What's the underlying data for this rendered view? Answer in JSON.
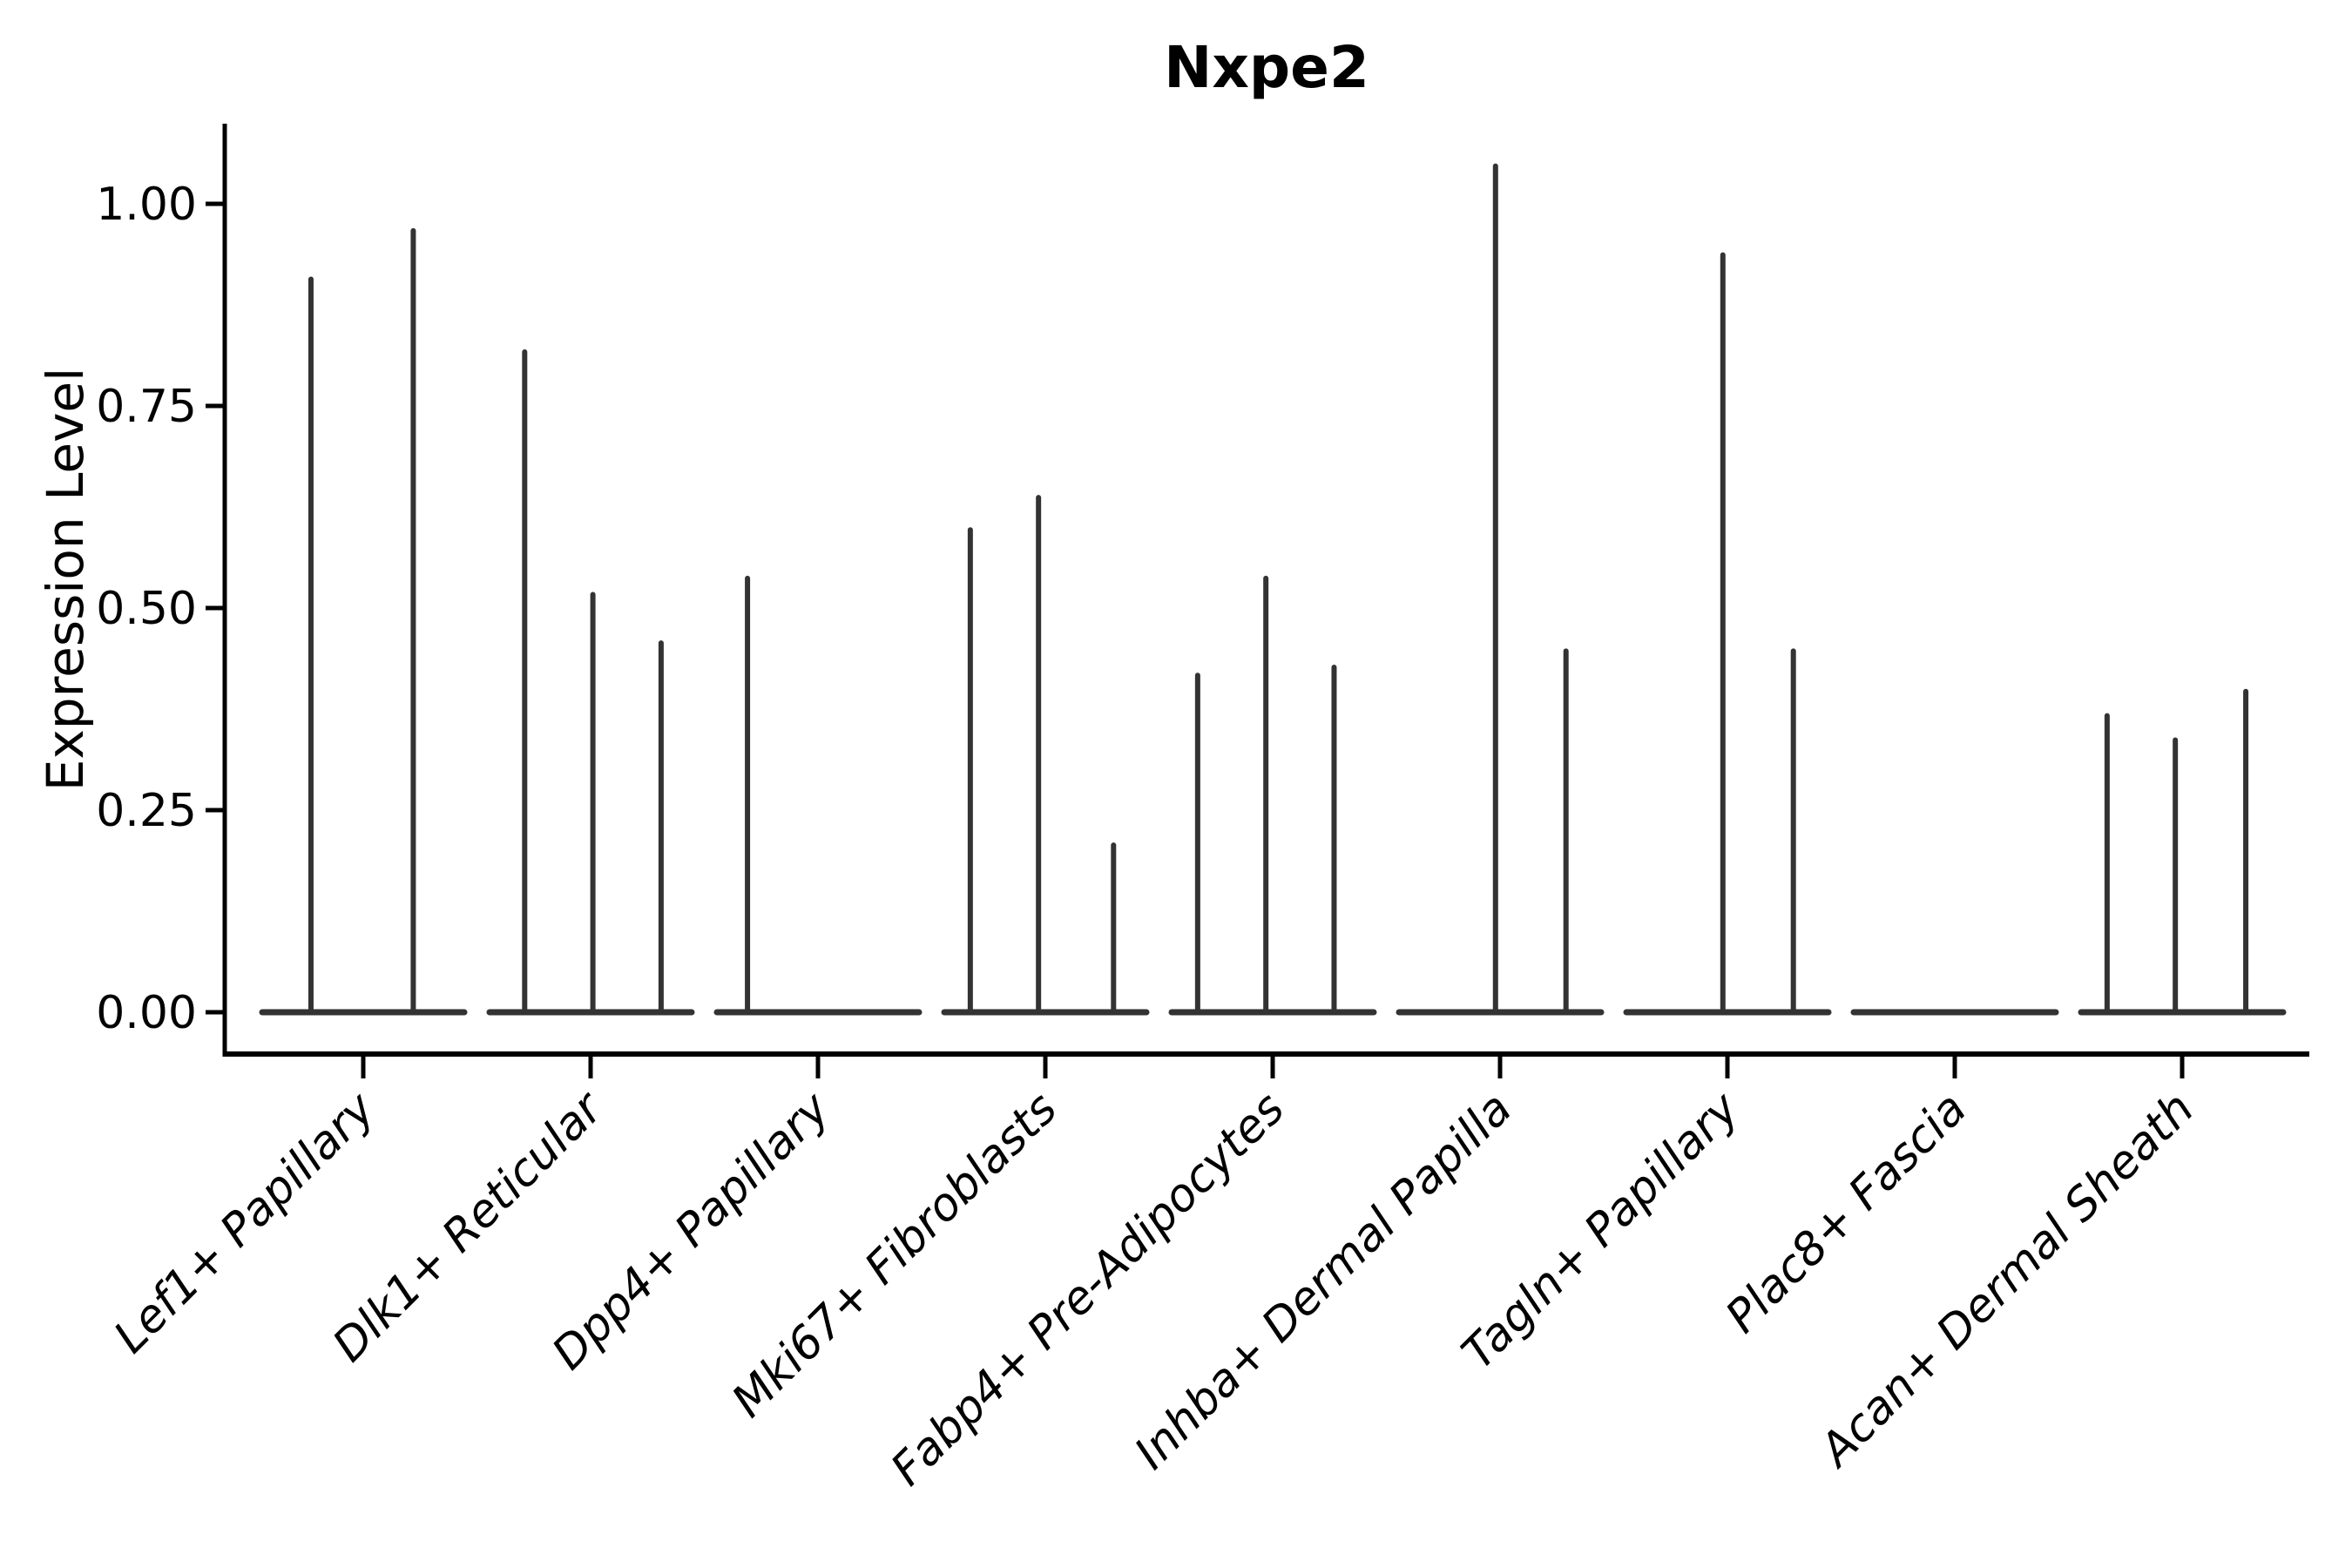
{
  "chart_data": {
    "type": "violin",
    "title": "Nxpe2",
    "xlabel": "",
    "ylabel": "Expression Level",
    "ylim": [
      -0.05,
      1.1
    ],
    "grid": false,
    "legend": null,
    "yticks": [
      {
        "value": 0.0,
        "label": "0.00"
      },
      {
        "value": 0.25,
        "label": "0.25"
      },
      {
        "value": 0.5,
        "label": "0.50"
      },
      {
        "value": 0.75,
        "label": "0.75"
      },
      {
        "value": 1.0,
        "label": "1.00"
      }
    ],
    "categories": [
      "Lef1+ Papillary",
      "Dlk1+ Reticular",
      "Dpp4+ Papillary",
      "Mki67+ Fibroblasts",
      "Fabp4+ Pre-Adipocytes",
      "Inhba+ Dermal Papilla",
      "Tagln+ Papillary",
      "Plac8+ Fascia",
      "Acan+ Dermal Sheath"
    ],
    "violins": [
      {
        "category": "Lef1+ Papillary",
        "base_value": 0.0,
        "spikes": [
          {
            "offset": -0.23,
            "value": 0.91
          },
          {
            "offset": 0.22,
            "value": 0.97
          }
        ]
      },
      {
        "category": "Dlk1+ Reticular",
        "base_value": 0.0,
        "spikes": [
          {
            "offset": -0.29,
            "value": 0.82
          },
          {
            "offset": 0.01,
            "value": 0.52
          },
          {
            "offset": 0.31,
            "value": 0.46
          }
        ]
      },
      {
        "category": "Dpp4+ Papillary",
        "base_value": 0.0,
        "spikes": [
          {
            "offset": -0.31,
            "value": 0.54
          }
        ]
      },
      {
        "category": "Mki67+ Fibroblasts",
        "base_value": 0.0,
        "spikes": [
          {
            "offset": -0.33,
            "value": 0.6
          },
          {
            "offset": -0.03,
            "value": 0.64
          },
          {
            "offset": 0.3,
            "value": 0.21
          }
        ]
      },
      {
        "category": "Fabp4+ Pre-Adipocytes",
        "base_value": 0.0,
        "spikes": [
          {
            "offset": -0.33,
            "value": 0.42
          },
          {
            "offset": -0.03,
            "value": 0.54
          },
          {
            "offset": 0.27,
            "value": 0.43
          }
        ]
      },
      {
        "category": "Inhba+ Dermal Papilla",
        "base_value": 0.0,
        "spikes": [
          {
            "offset": -0.02,
            "value": 1.05
          },
          {
            "offset": 0.29,
            "value": 0.45
          }
        ]
      },
      {
        "category": "Tagln+ Papillary",
        "base_value": 0.0,
        "spikes": [
          {
            "offset": -0.02,
            "value": 0.94
          },
          {
            "offset": 0.29,
            "value": 0.45
          }
        ]
      },
      {
        "category": "Plac8+ Fascia",
        "base_value": 0.0,
        "spikes": []
      },
      {
        "category": "Acan+ Dermal Sheath",
        "base_value": 0.0,
        "spikes": [
          {
            "offset": -0.33,
            "value": 0.37
          },
          {
            "offset": -0.03,
            "value": 0.34
          },
          {
            "offset": 0.28,
            "value": 0.4
          }
        ]
      }
    ],
    "colors": {
      "violin": "#333333",
      "axis": "#000000",
      "text": "#000000",
      "background": "#ffffff"
    }
  }
}
